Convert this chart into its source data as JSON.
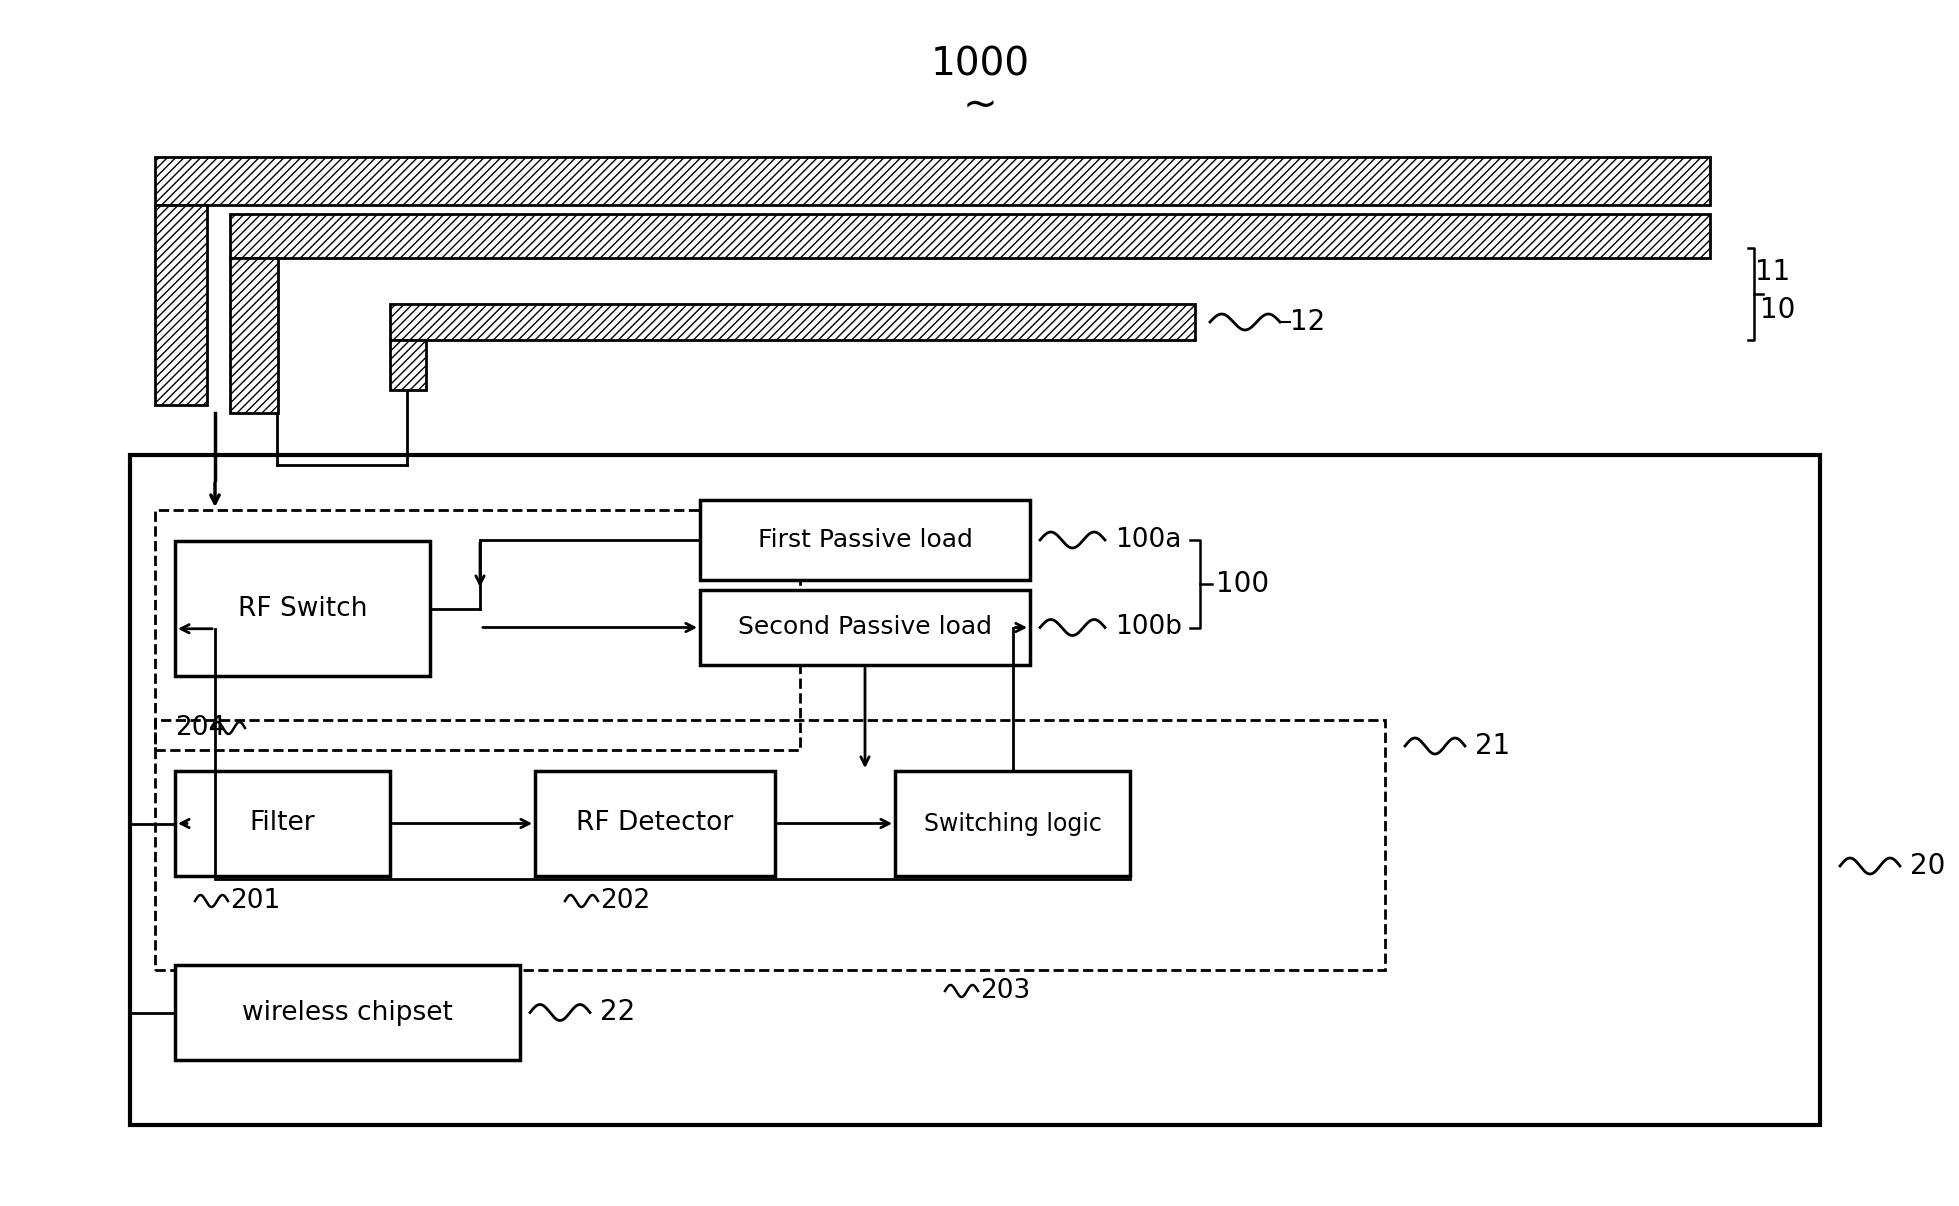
{
  "bg_color": "#ffffff",
  "line_color": "#000000",
  "labels": {
    "ref_1000": "1000",
    "ref_tilde": "~",
    "ref_10": "10",
    "ref_11": "11",
    "ref_12": "12",
    "ref_100": "100",
    "ref_100a": "100a",
    "ref_100b": "100b",
    "ref_20": "20",
    "ref_21": "21",
    "ref_22": "22",
    "ref_201": "201",
    "ref_202": "202",
    "ref_203": "203",
    "ref_204": "204",
    "box_rf_switch": "RF Switch",
    "box_filter": "Filter",
    "box_rf_detector": "RF Detector",
    "box_switching_logic": "Switching logic",
    "box_first_passive": "First Passive load",
    "box_second_passive": "Second Passive load",
    "box_wireless": "wireless chipset"
  }
}
